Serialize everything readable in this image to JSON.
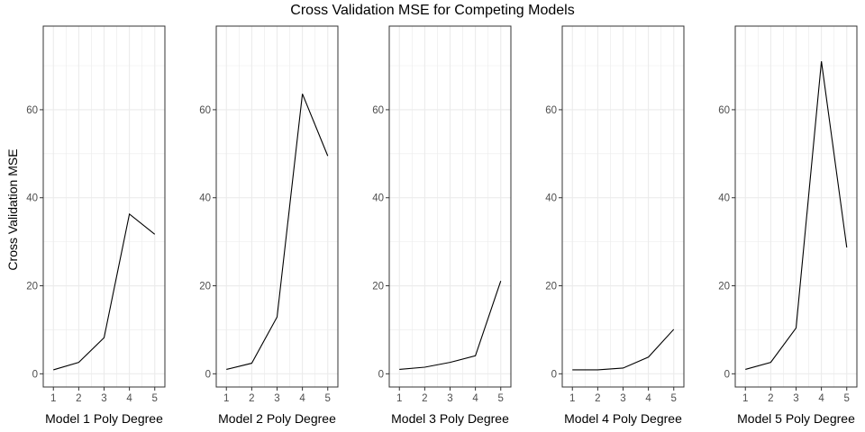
{
  "title": "Cross Validation MSE for Competing Models",
  "ylabel": "Cross Validation MSE",
  "colors": {
    "line": "#000000",
    "grid": "#ebebeb",
    "border": "#333333",
    "tick_text": "#4d4d4d"
  },
  "chart_data": [
    {
      "type": "line",
      "xlabel": "Model 1 Poly Degree",
      "x": [
        1,
        2,
        3,
        4,
        5
      ],
      "y": [
        0.9,
        2.6,
        8.2,
        36.3,
        31.7
      ],
      "xlim": [
        0.6,
        5.4
      ],
      "ylim": [
        -3,
        79
      ],
      "xticks": [
        1,
        2,
        3,
        4,
        5
      ],
      "yticks": [
        0,
        20,
        40,
        60
      ],
      "grid": true
    },
    {
      "type": "line",
      "xlabel": "Model 2 Poly Degree",
      "x": [
        1,
        2,
        3,
        4,
        5
      ],
      "y": [
        1.0,
        2.4,
        12.9,
        63.6,
        49.5
      ],
      "xlim": [
        0.6,
        5.4
      ],
      "ylim": [
        -3,
        79
      ],
      "xticks": [
        1,
        2,
        3,
        4,
        5
      ],
      "yticks": [
        0,
        20,
        40,
        60
      ],
      "grid": true
    },
    {
      "type": "line",
      "xlabel": "Model 3 Poly Degree",
      "x": [
        1,
        2,
        3,
        4,
        5
      ],
      "y": [
        1.0,
        1.5,
        2.6,
        4.1,
        21.1
      ],
      "xlim": [
        0.6,
        5.4
      ],
      "ylim": [
        -3,
        79
      ],
      "xticks": [
        1,
        2,
        3,
        4,
        5
      ],
      "yticks": [
        0,
        20,
        40,
        60
      ],
      "grid": true
    },
    {
      "type": "line",
      "xlabel": "Model 4 Poly Degree",
      "x": [
        1,
        2,
        3,
        4,
        5
      ],
      "y": [
        0.9,
        0.9,
        1.3,
        3.8,
        10.1
      ],
      "xlim": [
        0.6,
        5.4
      ],
      "ylim": [
        -3,
        79
      ],
      "xticks": [
        1,
        2,
        3,
        4,
        5
      ],
      "yticks": [
        0,
        20,
        40,
        60
      ],
      "grid": true
    },
    {
      "type": "line",
      "xlabel": "Model 5 Poly Degree",
      "x": [
        1,
        2,
        3,
        4,
        5
      ],
      "y": [
        1.0,
        2.6,
        10.4,
        71.0,
        28.7
      ],
      "xlim": [
        0.6,
        5.4
      ],
      "ylim": [
        -3,
        79
      ],
      "xticks": [
        1,
        2,
        3,
        4,
        5
      ],
      "yticks": [
        0,
        20,
        40,
        60
      ],
      "grid": true
    }
  ]
}
